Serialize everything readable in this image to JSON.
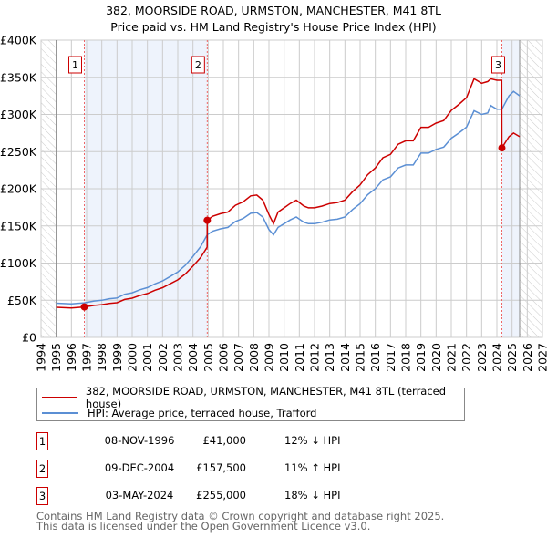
{
  "chart_data": {
    "type": "line",
    "title": "382, MOORSIDE ROAD, URMSTON, MANCHESTER, M41 8TL",
    "subtitle": "Price paid vs. HM Land Registry's House Price Index (HPI)",
    "xlim": [
      1994,
      2027
    ],
    "ylim": [
      0,
      400000
    ],
    "y_ticks": [
      {
        "v": 0,
        "label": "£0"
      },
      {
        "v": 50000,
        "label": "£50K"
      },
      {
        "v": 100000,
        "label": "£100K"
      },
      {
        "v": 150000,
        "label": "£150K"
      },
      {
        "v": 200000,
        "label": "£200K"
      },
      {
        "v": 250000,
        "label": "£250K"
      },
      {
        "v": 300000,
        "label": "£300K"
      },
      {
        "v": 350000,
        "label": "£350K"
      },
      {
        "v": 400000,
        "label": "£400K"
      }
    ],
    "x_ticks": [
      "1994",
      "1995",
      "1996",
      "1997",
      "1998",
      "1999",
      "2000",
      "2001",
      "2002",
      "2003",
      "2004",
      "2005",
      "2006",
      "2007",
      "2008",
      "2009",
      "2010",
      "2011",
      "2012",
      "2013",
      "2014",
      "2015",
      "2016",
      "2017",
      "2018",
      "2019",
      "2020",
      "2021",
      "2022",
      "2023",
      "2024",
      "2025",
      "2026",
      "2027"
    ],
    "hatched_ranges": [
      [
        1994,
        1995
      ],
      [
        2025.5,
        2027
      ]
    ],
    "shaded_ranges": [
      [
        1996.85,
        2004.94
      ],
      [
        2024.33,
        2025.5
      ]
    ],
    "series": [
      {
        "name": "382, MOORSIDE ROAD, URMSTON, MANCHESTER, M41 8TL (terraced house)",
        "color": "#cc0000",
        "x": [
          1995,
          1996,
          1996.85,
          1997.5,
          1998,
          1998.5,
          1999,
          1999.5,
          2000,
          2000.5,
          2001,
          2001.5,
          2002,
          2002.5,
          2003,
          2003.5,
          2004,
          2004.5,
          2004.93,
          2004.94,
          2005.3,
          2005.8,
          2006.3,
          2006.8,
          2007.3,
          2007.8,
          2008.2,
          2008.6,
          2009,
          2009.3,
          2009.6,
          2010,
          2010.4,
          2010.8,
          2011.3,
          2011.6,
          2012,
          2012.5,
          2013,
          2013.5,
          2014,
          2014.5,
          2015,
          2015.5,
          2016,
          2016.5,
          2017,
          2017.5,
          2018,
          2018.5,
          2019,
          2019.5,
          2020,
          2020.5,
          2021,
          2021.5,
          2022,
          2022.5,
          2023,
          2023.4,
          2023.6,
          2024,
          2024.32,
          2024.33,
          2024.8,
          2025.1,
          2025.5
        ],
        "y": [
          40500,
          39600,
          41000,
          43100,
          44000,
          45800,
          46600,
          51000,
          52800,
          56300,
          59000,
          63400,
          66900,
          72200,
          77400,
          85400,
          95900,
          107400,
          121400,
          157500,
          163000,
          166400,
          168700,
          177800,
          182400,
          190400,
          191500,
          184700,
          165300,
          153000,
          168700,
          174400,
          180100,
          184700,
          176700,
          174400,
          174400,
          176700,
          180100,
          181300,
          184700,
          196100,
          205200,
          218900,
          228000,
          241700,
          246200,
          259900,
          264500,
          264500,
          282700,
          282700,
          288400,
          291800,
          305500,
          313500,
          322600,
          348000,
          342000,
          344300,
          348000,
          346000,
          346000,
          255000,
          270000,
          275000,
          270000
        ]
      },
      {
        "name": "HPI: Average price, terraced house, Trafford",
        "color": "#5b8fd4",
        "x": [
          1995,
          1996,
          1996.85,
          1997.5,
          1998,
          1998.5,
          1999,
          1999.5,
          2000,
          2000.5,
          2001,
          2001.5,
          2002,
          2002.5,
          2003,
          2003.5,
          2004,
          2004.5,
          2004.94,
          2005.3,
          2005.8,
          2006.3,
          2006.8,
          2007.3,
          2007.8,
          2008.2,
          2008.6,
          2009,
          2009.3,
          2009.6,
          2010,
          2010.4,
          2010.8,
          2011.3,
          2011.6,
          2012,
          2012.5,
          2013,
          2013.5,
          2014,
          2014.5,
          2015,
          2015.5,
          2016,
          2016.5,
          2017,
          2017.5,
          2018,
          2018.5,
          2019,
          2019.5,
          2020,
          2020.5,
          2021,
          2021.5,
          2022,
          2022.5,
          2023,
          2023.4,
          2023.6,
          2024,
          2024.33,
          2024.8,
          2025.1,
          2025.5
        ],
        "y": [
          46000,
          45000,
          46500,
          49000,
          50000,
          52000,
          53000,
          58000,
          60000,
          64000,
          67000,
          72000,
          76000,
          82000,
          88000,
          97000,
          109000,
          122000,
          138000,
          143000,
          146000,
          148000,
          156000,
          160000,
          167000,
          168000,
          162000,
          145000,
          138000,
          148000,
          153000,
          158000,
          162000,
          155000,
          153000,
          153000,
          155000,
          158000,
          159000,
          162000,
          172000,
          180000,
          192000,
          200000,
          212000,
          216000,
          228000,
          232000,
          232000,
          248000,
          248000,
          253000,
          256000,
          268000,
          275000,
          283000,
          305000,
          300000,
          302000,
          312000,
          307000,
          307000,
          325000,
          331000,
          325000
        ]
      }
    ],
    "sales": [
      {
        "label": "1",
        "x": 1996.85,
        "y": 41000
      },
      {
        "label": "2",
        "x": 2004.94,
        "y": 157500
      },
      {
        "label": "3",
        "x": 2024.33,
        "y": 255000
      }
    ]
  },
  "legend": {
    "property": "382, MOORSIDE ROAD, URMSTON, MANCHESTER, M41 8TL (terraced house)",
    "hpi": "HPI: Average price, terraced house, Trafford"
  },
  "transactions": [
    {
      "num": "1",
      "date": "08-NOV-1996",
      "price": "£41,000",
      "change": "12% ↓ HPI"
    },
    {
      "num": "2",
      "date": "09-DEC-2004",
      "price": "£157,500",
      "change": "11% ↑ HPI"
    },
    {
      "num": "3",
      "date": "03-MAY-2024",
      "price": "£255,000",
      "change": "18% ↓ HPI"
    }
  ],
  "footer": {
    "line1": "Contains HM Land Registry data © Crown copyright and database right 2025.",
    "line2": "This data is licensed under the Open Government Licence v3.0."
  }
}
